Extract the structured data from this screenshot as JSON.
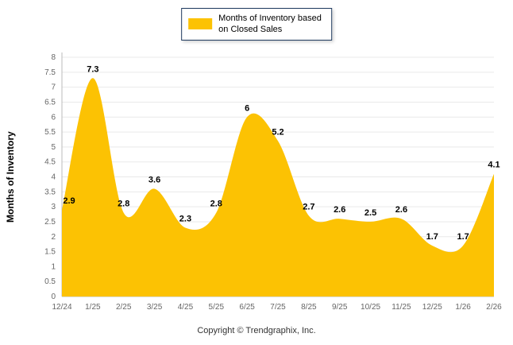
{
  "chart_data": {
    "type": "area",
    "title": "Months of Inventory based on Closed Sales",
    "categories": [
      "12/24",
      "1/25",
      "2/25",
      "3/25",
      "4/25",
      "5/25",
      "6/25",
      "7/25",
      "8/25",
      "9/25",
      "10/25",
      "11/25",
      "12/25",
      "1/26",
      "2/26"
    ],
    "values": [
      2.9,
      7.3,
      2.8,
      3.6,
      2.3,
      2.8,
      6,
      5.2,
      2.7,
      2.6,
      2.5,
      2.6,
      1.7,
      1.7,
      4.1
    ],
    "ylabel": "Months of Inventory",
    "xlabel": "",
    "ylim": [
      0,
      8
    ],
    "ytick_step": 0.5,
    "grid": true,
    "legend_position": "top",
    "series_color": "#FCC203"
  },
  "legend": {
    "line1": "Months of Inventory based",
    "line2": "on Closed Sales"
  },
  "footer": {
    "copyright": "Copyright © Trendgraphix, Inc."
  }
}
